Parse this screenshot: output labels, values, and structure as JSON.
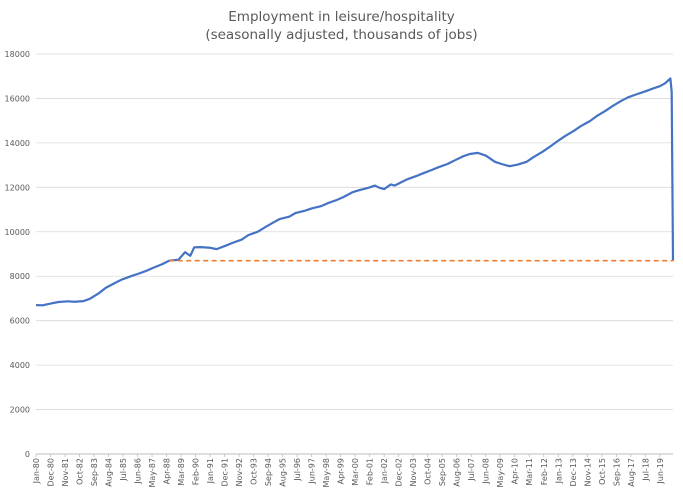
{
  "chart_data": {
    "type": "line",
    "title": "Employment in leisure/hospitality",
    "subtitle": "(seasonally adjusted, thousands of jobs)",
    "xlabel": "",
    "ylabel": "",
    "ylim": [
      0,
      18000
    ],
    "yticks": [
      0,
      2000,
      4000,
      6000,
      8000,
      10000,
      12000,
      14000,
      16000,
      18000
    ],
    "grid": true,
    "x_tick_labels": [
      "Jan-80",
      "Dec-80",
      "Nov-81",
      "Oct-82",
      "Sep-83",
      "Aug-84",
      "Jul-85",
      "Jun-86",
      "May-87",
      "Apr-88",
      "Mar-89",
      "Feb-90",
      "Jan-91",
      "Dec-91",
      "Nov-92",
      "Oct-93",
      "Sep-94",
      "Aug-95",
      "Jul-96",
      "Jun-97",
      "May-98",
      "Apr-99",
      "Mar-00",
      "Feb-01",
      "Jan-02",
      "Dec-02",
      "Nov-03",
      "Oct-04",
      "Sep-05",
      "Aug-06",
      "Jul-07",
      "Jun-08",
      "May-09",
      "Apr-10",
      "Mar-11",
      "Feb-12",
      "Jan-13",
      "Dec-13",
      "Nov-14",
      "Oct-15",
      "Sep-16",
      "Aug-17",
      "Jul-18",
      "Jun-19"
    ],
    "series": [
      {
        "color": "#4472C4",
        "style": "solid",
        "points": [
          [
            "1980-01",
            6700
          ],
          [
            "1980-06",
            6690
          ],
          [
            "1981-01",
            6780
          ],
          [
            "1981-06",
            6840
          ],
          [
            "1982-01",
            6870
          ],
          [
            "1982-06",
            6850
          ],
          [
            "1983-01",
            6880
          ],
          [
            "1983-06",
            6990
          ],
          [
            "1984-01",
            7250
          ],
          [
            "1984-06",
            7480
          ],
          [
            "1985-01",
            7700
          ],
          [
            "1985-06",
            7850
          ],
          [
            "1986-01",
            8000
          ],
          [
            "1986-06",
            8100
          ],
          [
            "1987-01",
            8250
          ],
          [
            "1987-06",
            8380
          ],
          [
            "1988-01",
            8550
          ],
          [
            "1988-06",
            8700
          ],
          [
            "1989-01",
            8740
          ],
          [
            "1989-06",
            9080
          ],
          [
            "1989-10",
            8920
          ],
          [
            "1990-01",
            9300
          ],
          [
            "1990-06",
            9310
          ],
          [
            "1991-01",
            9280
          ],
          [
            "1991-06",
            9220
          ],
          [
            "1992-01",
            9380
          ],
          [
            "1992-06",
            9500
          ],
          [
            "1993-01",
            9650
          ],
          [
            "1993-06",
            9850
          ],
          [
            "1994-01",
            10000
          ],
          [
            "1994-06",
            10180
          ],
          [
            "1995-01",
            10420
          ],
          [
            "1995-06",
            10580
          ],
          [
            "1996-01",
            10680
          ],
          [
            "1996-06",
            10850
          ],
          [
            "1997-01",
            10950
          ],
          [
            "1997-06",
            11050
          ],
          [
            "1998-01",
            11150
          ],
          [
            "1998-06",
            11280
          ],
          [
            "1999-01",
            11430
          ],
          [
            "1999-06",
            11560
          ],
          [
            "2000-01",
            11780
          ],
          [
            "2000-06",
            11870
          ],
          [
            "2001-01",
            11980
          ],
          [
            "2001-06",
            12080
          ],
          [
            "2001-09",
            11990
          ],
          [
            "2002-01",
            11920
          ],
          [
            "2002-06",
            12130
          ],
          [
            "2002-09",
            12080
          ],
          [
            "2003-01",
            12200
          ],
          [
            "2003-06",
            12350
          ],
          [
            "2004-01",
            12500
          ],
          [
            "2004-06",
            12620
          ],
          [
            "2005-01",
            12780
          ],
          [
            "2005-06",
            12900
          ],
          [
            "2006-01",
            13050
          ],
          [
            "2006-06",
            13200
          ],
          [
            "2007-01",
            13400
          ],
          [
            "2007-06",
            13500
          ],
          [
            "2007-12",
            13550
          ],
          [
            "2008-06",
            13430
          ],
          [
            "2009-01",
            13150
          ],
          [
            "2009-06",
            13050
          ],
          [
            "2009-12",
            12950
          ],
          [
            "2010-06",
            13020
          ],
          [
            "2011-01",
            13150
          ],
          [
            "2011-06",
            13350
          ],
          [
            "2012-01",
            13600
          ],
          [
            "2012-06",
            13800
          ],
          [
            "2013-01",
            14100
          ],
          [
            "2013-06",
            14300
          ],
          [
            "2014-01",
            14550
          ],
          [
            "2014-06",
            14750
          ],
          [
            "2015-01",
            14980
          ],
          [
            "2015-06",
            15200
          ],
          [
            "2016-01",
            15450
          ],
          [
            "2016-06",
            15650
          ],
          [
            "2017-01",
            15900
          ],
          [
            "2017-06",
            16050
          ],
          [
            "2018-01",
            16200
          ],
          [
            "2018-06",
            16300
          ],
          [
            "2019-01",
            16450
          ],
          [
            "2019-06",
            16550
          ],
          [
            "2019-10",
            16680
          ],
          [
            "2020-02",
            16900
          ],
          [
            "2020-03",
            16300
          ],
          [
            "2020-04",
            8700
          ]
        ]
      },
      {
        "color": "#ED7D31",
        "style": "dashed",
        "points": [
          [
            "1988-06",
            8700
          ],
          [
            "2020-04",
            8700
          ]
        ]
      }
    ]
  }
}
